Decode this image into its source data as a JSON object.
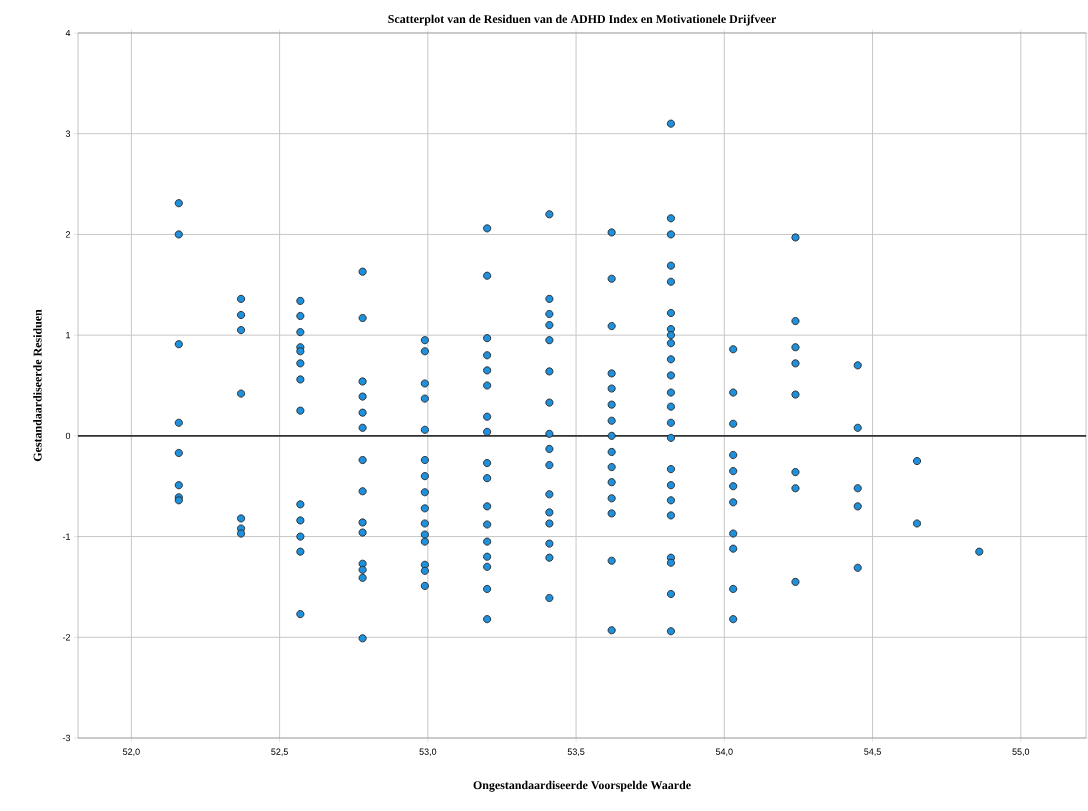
{
  "chart_data": {
    "type": "scatter",
    "title": "Scatterplot van de Residuen van de ADHD Index en Motivationele Drijfveer",
    "xlabel": "Ongestandaardiseerde Voorspelde Waarde",
    "ylabel": "Gestandaardiseerde Residuen",
    "x": [
      52.16,
      52.16,
      52.16,
      52.16,
      52.16,
      52.16,
      52.16,
      52.16,
      52.37,
      52.37,
      52.37,
      52.37,
      52.37,
      52.37,
      52.37,
      52.57,
      52.57,
      52.57,
      52.57,
      52.57,
      52.57,
      52.57,
      52.57,
      52.57,
      52.57,
      52.57,
      52.57,
      52.57,
      52.78,
      52.78,
      52.78,
      52.78,
      52.78,
      52.78,
      52.78,
      52.78,
      52.78,
      52.78,
      52.78,
      52.78,
      52.78,
      52.78,
      52.99,
      52.99,
      52.99,
      52.99,
      52.99,
      52.99,
      52.99,
      52.99,
      52.99,
      52.99,
      52.99,
      52.99,
      52.99,
      52.99,
      52.99,
      53.2,
      53.2,
      53.2,
      53.2,
      53.2,
      53.2,
      53.2,
      53.2,
      53.2,
      53.2,
      53.2,
      53.2,
      53.2,
      53.2,
      53.2,
      53.2,
      53.2,
      53.41,
      53.41,
      53.41,
      53.41,
      53.41,
      53.41,
      53.41,
      53.41,
      53.41,
      53.41,
      53.41,
      53.41,
      53.41,
      53.41,
      53.41,
      53.41,
      53.62,
      53.62,
      53.62,
      53.62,
      53.62,
      53.62,
      53.62,
      53.62,
      53.62,
      53.62,
      53.62,
      53.62,
      53.62,
      53.62,
      53.62,
      53.82,
      53.82,
      53.82,
      53.82,
      53.82,
      53.82,
      53.82,
      53.82,
      53.82,
      53.82,
      53.82,
      53.82,
      53.82,
      53.82,
      53.82,
      53.82,
      53.82,
      53.82,
      53.82,
      53.82,
      53.82,
      53.82,
      53.82,
      54.03,
      54.03,
      54.03,
      54.03,
      54.03,
      54.03,
      54.03,
      54.03,
      54.03,
      54.03,
      54.03,
      54.24,
      54.24,
      54.24,
      54.24,
      54.24,
      54.24,
      54.24,
      54.24,
      54.45,
      54.45,
      54.45,
      54.45,
      54.45,
      54.65,
      54.65,
      54.86
    ],
    "values": [
      2.31,
      2.0,
      0.91,
      0.13,
      -0.17,
      -0.49,
      -0.61,
      -0.64,
      1.36,
      1.2,
      1.05,
      0.42,
      -0.82,
      -0.92,
      -0.97,
      1.34,
      1.19,
      1.03,
      0.88,
      0.84,
      0.72,
      0.56,
      0.25,
      -0.68,
      -0.84,
      -1.0,
      -1.15,
      -1.77,
      1.63,
      1.17,
      0.54,
      0.39,
      0.23,
      0.08,
      -0.24,
      -0.55,
      -0.86,
      -0.96,
      -1.27,
      -1.33,
      -1.41,
      -2.01,
      0.95,
      0.84,
      0.52,
      0.37,
      0.06,
      -0.24,
      -0.4,
      -0.56,
      -0.72,
      -0.87,
      -0.98,
      -1.05,
      -1.28,
      -1.34,
      -1.49,
      2.06,
      1.59,
      0.97,
      0.8,
      0.65,
      0.5,
      0.19,
      0.04,
      -0.27,
      -0.42,
      -0.7,
      -0.88,
      -1.05,
      -1.2,
      -1.3,
      -1.52,
      -1.82,
      2.2,
      1.36,
      1.21,
      1.1,
      0.95,
      0.64,
      0.33,
      0.02,
      -0.13,
      -0.29,
      -0.58,
      -0.76,
      -0.87,
      -1.07,
      -1.21,
      -1.61,
      2.02,
      1.56,
      1.09,
      0.62,
      0.47,
      0.31,
      0.15,
      0.0,
      -0.16,
      -0.31,
      -0.46,
      -0.62,
      -0.77,
      -1.24,
      -1.93,
      3.1,
      2.16,
      2.0,
      1.69,
      1.53,
      1.22,
      1.06,
      1.0,
      0.92,
      0.76,
      0.6,
      0.43,
      0.29,
      0.13,
      -0.02,
      -0.33,
      -0.49,
      -0.64,
      -0.79,
      -1.21,
      -1.26,
      -1.57,
      -1.94,
      0.86,
      0.43,
      0.12,
      -0.19,
      -0.35,
      -0.5,
      -0.66,
      -0.97,
      -1.12,
      -1.52,
      -1.82,
      1.97,
      1.14,
      0.88,
      0.72,
      0.41,
      -0.36,
      -0.52,
      -1.45,
      0.7,
      0.08,
      -0.52,
      -0.7,
      -1.31,
      -0.25,
      -0.87,
      -1.15
    ],
    "color": "#1e90dc",
    "marker": "circle",
    "grid": true,
    "xlim": [
      51.82,
      55.22
    ],
    "ylim": [
      -3,
      4
    ],
    "xticks": [
      {
        "value": 52.0,
        "label": "52,0"
      },
      {
        "value": 52.5,
        "label": "52,5"
      },
      {
        "value": 53.0,
        "label": "53,0"
      },
      {
        "value": 53.5,
        "label": "53,5"
      },
      {
        "value": 54.0,
        "label": "54,0"
      },
      {
        "value": 54.5,
        "label": "54,5"
      },
      {
        "value": 55.0,
        "label": "55,0"
      }
    ],
    "yticks": [
      -3,
      -2,
      -1,
      0,
      1,
      2,
      3,
      4
    ],
    "ref_lines": [
      {
        "axis": "y",
        "value": 0,
        "color": "#333333"
      }
    ]
  }
}
